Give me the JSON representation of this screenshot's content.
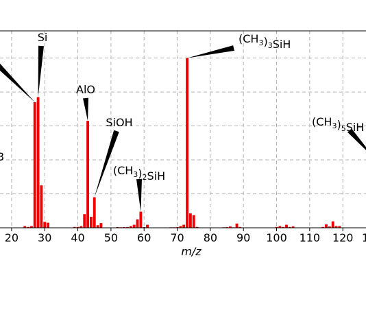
{
  "chart_data": {
    "type": "bar",
    "title": "",
    "xlabel": "m/z",
    "ylabel": "",
    "xlim": [
      16.5,
      127
    ],
    "ylim": [
      0,
      1.16
    ],
    "x_ticks": [
      20,
      30,
      40,
      50,
      60,
      70,
      80,
      90,
      100,
      110,
      120
    ],
    "x_tick_labels": [
      "20",
      "30",
      "40",
      "50",
      "60",
      "70",
      "80",
      "90",
      "100",
      "110",
      "120"
    ],
    "partial_x_tick_label": "1",
    "partial_y_label_text": "3",
    "grid": true,
    "series": [
      {
        "color": "#ee0000",
        "x": [
          24,
          25,
          26,
          27,
          28,
          29,
          30,
          31,
          39,
          40,
          41,
          42,
          43,
          44,
          45,
          46,
          47,
          52,
          53,
          54,
          55,
          56,
          57,
          58,
          59,
          60,
          61,
          68,
          69,
          70,
          71,
          72,
          73,
          74,
          75,
          76,
          84,
          85,
          86,
          87,
          88,
          89,
          100,
          101,
          102,
          103,
          104,
          105,
          114,
          115,
          116,
          117,
          118,
          119
        ],
        "values": [
          0.01,
          0.005,
          0.01,
          0.74,
          0.77,
          0.25,
          0.035,
          0.03,
          0.005,
          0.005,
          0.01,
          0.08,
          0.63,
          0.065,
          0.18,
          0.015,
          0.028,
          0.004,
          0.003,
          0.004,
          0.004,
          0.01,
          0.018,
          0.05,
          0.095,
          0.004,
          0.018,
          0.003,
          0.003,
          0.004,
          0.01,
          0.018,
          1.0,
          0.085,
          0.075,
          0.005,
          0.003,
          0.004,
          0.008,
          0.003,
          0.025,
          0.005,
          0.005,
          0.01,
          0.005,
          0.018,
          0.005,
          0.008,
          0.005,
          0.02,
          0.008,
          0.038,
          0.01,
          0.01
        ]
      }
    ],
    "annotations": [
      {
        "label": "Si",
        "main": "Si",
        "parts": [],
        "x": 28,
        "y": 0.77
      },
      {
        "label": "AlO",
        "main": "AlO",
        "parts": [],
        "x": 43,
        "y": 0.63
      },
      {
        "label": "SiOH",
        "main": "SiOH",
        "parts": [],
        "x": 45,
        "y": 0.18
      },
      {
        "label": "(CH3)2SiH",
        "main": "",
        "parts": [
          [
            "(CH",
            ""
          ],
          [
            "3",
            "sub"
          ],
          [
            ")",
            ""
          ],
          [
            "2",
            "sub"
          ],
          [
            "SiH",
            ""
          ]
        ],
        "x": 59,
        "y": 0.095
      },
      {
        "label": "(CH3)3SiH",
        "main": "",
        "parts": [
          [
            "(CH",
            ""
          ],
          [
            "3",
            "sub"
          ],
          [
            ")",
            ""
          ],
          [
            "3",
            "sub"
          ],
          [
            "SiH",
            ""
          ]
        ],
        "x": 73,
        "y": 1.0
      },
      {
        "label": "(CH3)5SiH",
        "main": "",
        "parts": [
          [
            "(CH",
            ""
          ],
          [
            "3",
            "sub"
          ],
          [
            ")",
            ""
          ],
          [
            "5",
            "sub"
          ],
          [
            "SiH",
            ""
          ]
        ],
        "x": 130,
        "y": 0.4
      }
    ]
  }
}
